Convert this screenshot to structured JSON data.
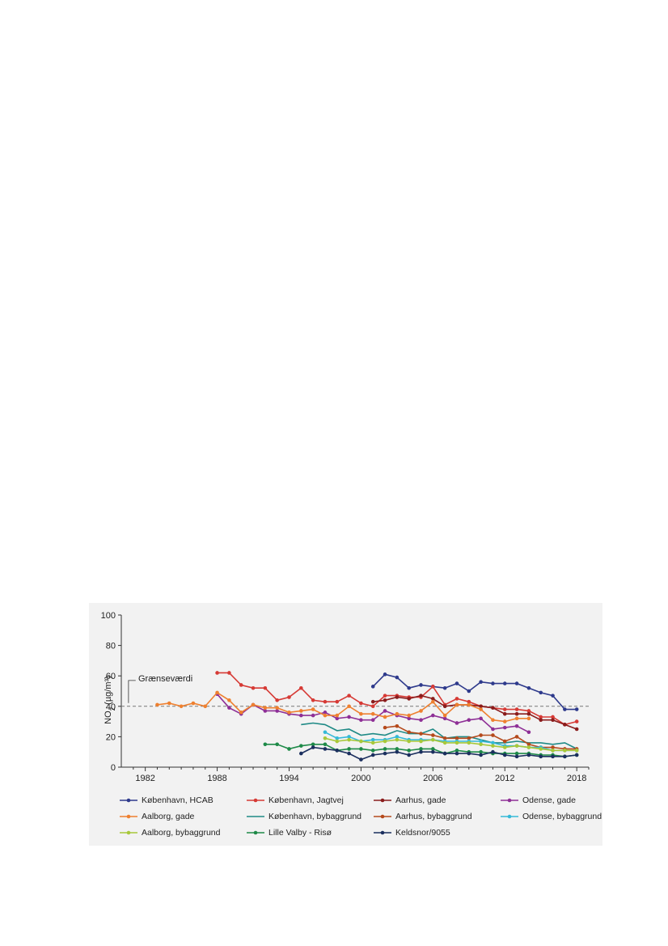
{
  "chart_data": {
    "type": "line",
    "title": "",
    "ylabel_main": "NO",
    "ylabel_sub": "2",
    "ylabel_unit": " (µg/m³)",
    "xlabel": "",
    "xlim": [
      1980,
      2019
    ],
    "ylim": [
      0,
      100
    ],
    "x_ticks": [
      1982,
      1988,
      1994,
      2000,
      2006,
      2012,
      2018
    ],
    "y_ticks": [
      0,
      20,
      40,
      60,
      80,
      100
    ],
    "grid": false,
    "legend_position": "bottom",
    "reference_line": {
      "label": "Grænseværdi",
      "value": 40
    },
    "series": [
      {
        "name": "København, HCAB",
        "color": "#2e3a8c",
        "style": "markers",
        "x": [
          2001,
          2002,
          2003,
          2004,
          2005,
          2006,
          2007,
          2008,
          2009,
          2010,
          2011,
          2012,
          2013,
          2014,
          2015,
          2016,
          2017,
          2018
        ],
        "y": [
          53,
          61,
          59,
          52,
          54,
          53,
          52,
          55,
          50,
          56,
          55,
          55,
          55,
          52,
          49,
          47,
          38,
          38
        ]
      },
      {
        "name": "København, Jagtvej",
        "color": "#d63a35",
        "style": "markers",
        "x": [
          1988,
          1989,
          1990,
          1991,
          1992,
          1993,
          1994,
          1995,
          1996,
          1997,
          1998,
          1999,
          2000,
          2001,
          2002,
          2003,
          2004,
          2005,
          2006,
          2007,
          2008,
          2009,
          2010,
          2011,
          2012,
          2013,
          2014,
          2015,
          2016,
          2017,
          2018
        ],
        "y": [
          62,
          62,
          54,
          52,
          52,
          44,
          46,
          52,
          44,
          43,
          43,
          47,
          42,
          40,
          47,
          47,
          46,
          46,
          53,
          41,
          45,
          43,
          40,
          39,
          38,
          38,
          37,
          33,
          33,
          28,
          30
        ]
      },
      {
        "name": "Aarhus, gade",
        "color": "#8a1c1c",
        "style": "markers",
        "x": [
          2001,
          2002,
          2003,
          2004,
          2005,
          2006,
          2007,
          2008,
          2009,
          2010,
          2011,
          2012,
          2013,
          2014,
          2015,
          2016,
          2017,
          2018
        ],
        "y": [
          43,
          44,
          46,
          45,
          47,
          45,
          40,
          41,
          41,
          40,
          39,
          35,
          35,
          35,
          31,
          31,
          28,
          25
        ]
      },
      {
        "name": "Odense, gade",
        "color": "#8e2f96",
        "style": "markers",
        "x": [
          1988,
          1989,
          1990,
          1991,
          1992,
          1993,
          1994,
          1995,
          1996,
          1997,
          1998,
          1999,
          2000,
          2001,
          2002,
          2003,
          2004,
          2005,
          2006,
          2007,
          2008,
          2009,
          2010,
          2011,
          2012,
          2013,
          2014
        ],
        "y": [
          48,
          39,
          35,
          41,
          37,
          37,
          35,
          34,
          34,
          36,
          32,
          33,
          31,
          31,
          37,
          34,
          32,
          31,
          34,
          32,
          29,
          31,
          32,
          25,
          26,
          27,
          23
        ]
      },
      {
        "name": "Aalborg, gade",
        "color": "#ee8030",
        "style": "markers",
        "x": [
          1983,
          1984,
          1985,
          1986,
          1987,
          1988,
          1989,
          1990,
          1991,
          1992,
          1993,
          1994,
          1995,
          1996,
          1997,
          1998,
          1999,
          2000,
          2001,
          2002,
          2003,
          2004,
          2005,
          2006,
          2007,
          2008,
          2009,
          2010,
          2011,
          2012,
          2013,
          2014
        ],
        "y": [
          41,
          42,
          40,
          42,
          40,
          49,
          44,
          36,
          41,
          39,
          39,
          36,
          37,
          38,
          34,
          34,
          40,
          35,
          35,
          33,
          35,
          34,
          37,
          43,
          34,
          41,
          41,
          38,
          31,
          30,
          32,
          32
        ]
      },
      {
        "name": "København, bybaggrund",
        "color": "#1f8a86",
        "style": "line",
        "x": [
          1995,
          1996,
          1997,
          1998,
          1999,
          2000,
          2001,
          2002,
          2003,
          2004,
          2005,
          2006,
          2007,
          2008,
          2009,
          2010,
          2011,
          2012,
          2013,
          2014,
          2015,
          2016,
          2017,
          2018
        ],
        "y": [
          28,
          29,
          28,
          24,
          25,
          21,
          22,
          21,
          24,
          22,
          22,
          25,
          19,
          20,
          20,
          18,
          16,
          16,
          17,
          16,
          16,
          15,
          16,
          12
        ]
      },
      {
        "name": "Aarhus, bybaggrund",
        "color": "#b54a1c",
        "style": "markers",
        "x": [
          2002,
          2003,
          2004,
          2005,
          2006,
          2007,
          2008,
          2009,
          2010,
          2011,
          2012,
          2013,
          2014,
          2015,
          2016,
          2017,
          2018
        ],
        "y": [
          26,
          27,
          23,
          22,
          21,
          19,
          19,
          19,
          21,
          21,
          17,
          20,
          15,
          13,
          13,
          12,
          12
        ]
      },
      {
        "name": "Odense, bybaggrund",
        "color": "#35b9d8",
        "style": "markers",
        "x": [
          1997,
          1998,
          1999,
          2000,
          2001,
          2002,
          2003,
          2004,
          2005,
          2006,
          2007,
          2008,
          2009,
          2010,
          2011,
          2012,
          2013,
          2014,
          2015,
          2016,
          2017,
          2018
        ],
        "y": [
          23,
          19,
          20,
          17,
          18,
          18,
          20,
          18,
          18,
          18,
          17,
          17,
          17,
          17,
          16,
          14,
          14,
          13,
          13,
          11,
          11,
          11
        ]
      },
      {
        "name": "Aalborg, bybaggrund",
        "color": "#a8c83a",
        "style": "markers",
        "x": [
          1997,
          1998,
          1999,
          2000,
          2001,
          2002,
          2003,
          2004,
          2005,
          2006,
          2007,
          2008,
          2009,
          2010,
          2011,
          2012,
          2013,
          2014,
          2015,
          2016,
          2017,
          2018
        ],
        "y": [
          19,
          17,
          18,
          17,
          16,
          17,
          18,
          17,
          17,
          18,
          16,
          16,
          16,
          15,
          14,
          13,
          14,
          13,
          12,
          11,
          11,
          11
        ]
      },
      {
        "name": "Lille Valby - Risø",
        "color": "#1e8a48",
        "style": "markers",
        "x": [
          1992,
          1993,
          1994,
          1995,
          1996,
          1997,
          1998,
          1999,
          2000,
          2001,
          2002,
          2003,
          2004,
          2005,
          2006,
          2007,
          2008,
          2009,
          2010,
          2011,
          2012,
          2013,
          2014,
          2015,
          2016,
          2017,
          2018
        ],
        "y": [
          15,
          15,
          12,
          14,
          15,
          15,
          11,
          12,
          12,
          11,
          12,
          12,
          11,
          12,
          12,
          9,
          11,
          10,
          10,
          9,
          9,
          9,
          9,
          8,
          8,
          7,
          8
        ]
      },
      {
        "name": "Keldsnor/9055",
        "color": "#1b2f5e",
        "style": "markers",
        "x": [
          1995,
          1996,
          1997,
          1998,
          1999,
          2000,
          2001,
          2002,
          2003,
          2004,
          2005,
          2006,
          2007,
          2008,
          2009,
          2010,
          2011,
          2012,
          2013,
          2014,
          2015,
          2016,
          2017,
          2018
        ],
        "y": [
          9,
          13,
          12,
          11,
          9,
          5,
          8,
          9,
          10,
          8,
          10,
          10,
          9,
          9,
          9,
          8,
          10,
          8,
          7,
          8,
          7,
          7,
          7,
          8
        ]
      }
    ]
  }
}
